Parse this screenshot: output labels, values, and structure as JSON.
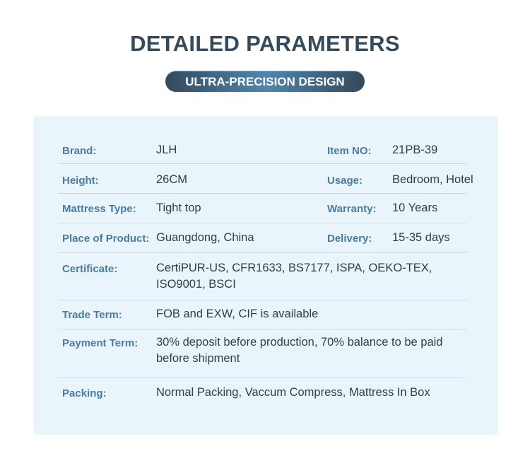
{
  "header": {
    "title": "DETAILED PARAMETERS",
    "subtitle": "ULTRA-PRECISION DESIGN"
  },
  "params": [
    {
      "label": "Brand:",
      "value": "JLH",
      "label2": "Item NO:",
      "value2": "21PB-39"
    },
    {
      "label": "Height:",
      "value": "26CM",
      "label2": "Usage:",
      "value2": "Bedroom, Hotel"
    },
    {
      "label": "Mattress Type:",
      "value": "Tight top",
      "label2": "Warranty:",
      "value2": "10 Years"
    },
    {
      "label": "Place of Product:",
      "value": "Guangdong, China",
      "label2": "Delivery:",
      "value2": "15-35 days"
    },
    {
      "label": "Certificate:",
      "value": "CertiPUR-US, CFR1633, BS7177, ISPA, OEKO-TEX, ISO9001, BSCI"
    },
    {
      "label": "Trade Term:",
      "value": "FOB and EXW, CIF is available"
    },
    {
      "label": "Payment Term:",
      "value": "30% deposit before production, 70% balance to be paid before shipment"
    },
    {
      "label": "Packing:",
      "value": "Normal Packing, Vaccum Compress, Mattress In Box"
    }
  ]
}
